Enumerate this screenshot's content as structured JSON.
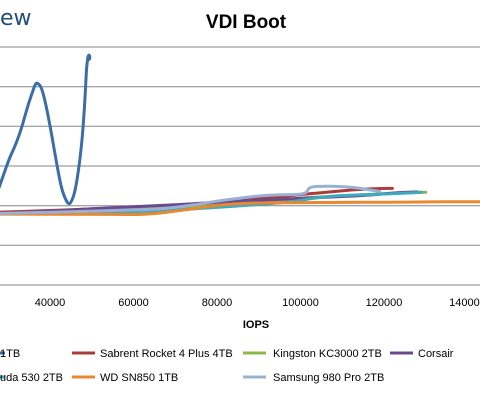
{
  "brand": "ew",
  "chart_data": {
    "type": "line",
    "title": "VDI Boot",
    "xlabel": "IOPS",
    "ylabel": "",
    "xticks": [
      40000,
      60000,
      80000,
      100000,
      120000,
      140000
    ],
    "xtick_labels": [
      "40000",
      "60000",
      "80000",
      "100000",
      "120000",
      "140000"
    ],
    "xlim": [
      25000,
      145000
    ],
    "grid": true,
    "legend_position": "bottom",
    "series": [
      {
        "name": "1TB",
        "color": "#3b6da8",
        "points": [
          [
            25000,
            0.31
          ],
          [
            26000,
            0.335
          ],
          [
            27000,
            0.37
          ],
          [
            28000,
            0.42
          ],
          [
            29000,
            0.47
          ],
          [
            30000,
            0.52
          ],
          [
            31000,
            0.56
          ],
          [
            32000,
            0.6
          ],
          [
            33000,
            0.65
          ],
          [
            34000,
            0.71
          ],
          [
            35000,
            0.77
          ],
          [
            36000,
            0.82
          ],
          [
            36500,
            0.845
          ],
          [
            37000,
            0.85
          ],
          [
            38000,
            0.83
          ],
          [
            39000,
            0.76
          ],
          [
            40000,
            0.67
          ],
          [
            41000,
            0.57
          ],
          [
            42000,
            0.47
          ],
          [
            43000,
            0.39
          ],
          [
            44000,
            0.35
          ],
          [
            44500,
            0.34
          ],
          [
            45000,
            0.345
          ],
          [
            46000,
            0.39
          ],
          [
            47000,
            0.5
          ],
          [
            47800,
            0.63
          ],
          [
            48300,
            0.76
          ],
          [
            48600,
            0.86
          ],
          [
            48800,
            0.92
          ],
          [
            49000,
            0.95
          ],
          [
            49300,
            0.97
          ],
          [
            49600,
            0.955
          ],
          [
            49300,
            0.945
          ],
          [
            49000,
            0.955
          ]
        ]
      },
      {
        "name": "Sabrent Rocket 4 Plus 4TB",
        "color": "#aa3c3c",
        "points": [
          [
            25000,
            0.305
          ],
          [
            30000,
            0.307
          ],
          [
            40000,
            0.313
          ],
          [
            50000,
            0.32
          ],
          [
            60000,
            0.325
          ],
          [
            70000,
            0.334
          ],
          [
            80000,
            0.348
          ],
          [
            85000,
            0.355
          ],
          [
            90000,
            0.363
          ],
          [
            95000,
            0.37
          ],
          [
            100000,
            0.38
          ],
          [
            105000,
            0.388
          ],
          [
            110000,
            0.396
          ],
          [
            115000,
            0.403
          ],
          [
            120000,
            0.406
          ],
          [
            122000,
            0.406
          ]
        ]
      },
      {
        "name": "Kingston KC3000 2TB",
        "color": "#8db849",
        "points": [
          [
            25000,
            0.3
          ],
          [
            40000,
            0.304
          ],
          [
            60000,
            0.318
          ],
          [
            70000,
            0.327
          ],
          [
            80000,
            0.335
          ],
          [
            90000,
            0.35
          ],
          [
            100000,
            0.365
          ],
          [
            110000,
            0.375
          ],
          [
            120000,
            0.384
          ],
          [
            126000,
            0.388
          ],
          [
            130000,
            0.39
          ]
        ]
      },
      {
        "name": "Corsair",
        "color": "#6a4a8f",
        "points": [
          [
            25000,
            0.3
          ],
          [
            35000,
            0.305
          ],
          [
            45000,
            0.315
          ],
          [
            55000,
            0.325
          ],
          [
            65000,
            0.333
          ],
          [
            75000,
            0.342
          ],
          [
            85000,
            0.352
          ],
          [
            95000,
            0.36
          ],
          [
            105000,
            0.368
          ],
          [
            115000,
            0.376
          ],
          [
            120000,
            0.383
          ],
          [
            125000,
            0.39
          ],
          [
            128000,
            0.391
          ]
        ]
      },
      {
        "name": "uda 530 2TB",
        "color": "#3fa9bf",
        "points": [
          [
            25000,
            0.3
          ],
          [
            40000,
            0.302
          ],
          [
            55000,
            0.306
          ],
          [
            65000,
            0.31
          ],
          [
            75000,
            0.32
          ],
          [
            85000,
            0.332
          ],
          [
            95000,
            0.345
          ],
          [
            100000,
            0.355
          ],
          [
            105000,
            0.37
          ],
          [
            110000,
            0.376
          ],
          [
            120000,
            0.382
          ],
          [
            125000,
            0.386
          ],
          [
            129000,
            0.39
          ]
        ]
      },
      {
        "name": "WD SN850 1TB",
        "color": "#e8882f",
        "points": [
          [
            25000,
            0.298
          ],
          [
            35000,
            0.298
          ],
          [
            50000,
            0.297
          ],
          [
            60000,
            0.296
          ],
          [
            65000,
            0.299
          ],
          [
            70000,
            0.31
          ],
          [
            75000,
            0.322
          ],
          [
            80000,
            0.335
          ],
          [
            85000,
            0.342
          ],
          [
            90000,
            0.345
          ],
          [
            100000,
            0.346
          ],
          [
            110000,
            0.347
          ],
          [
            120000,
            0.348
          ],
          [
            130000,
            0.349
          ],
          [
            140000,
            0.35
          ],
          [
            145000,
            0.35
          ]
        ]
      },
      {
        "name": "Samsung 980 Pro 2TB",
        "color": "#9bb0d5",
        "points": [
          [
            25000,
            0.3
          ],
          [
            40000,
            0.305
          ],
          [
            50000,
            0.31
          ],
          [
            60000,
            0.316
          ],
          [
            65000,
            0.318
          ],
          [
            70000,
            0.326
          ],
          [
            75000,
            0.338
          ],
          [
            80000,
            0.353
          ],
          [
            85000,
            0.364
          ],
          [
            90000,
            0.375
          ],
          [
            95000,
            0.38
          ],
          [
            100000,
            0.38
          ],
          [
            101500,
            0.388
          ],
          [
            102000,
            0.41
          ],
          [
            104000,
            0.415
          ],
          [
            110000,
            0.414
          ],
          [
            114000,
            0.408
          ],
          [
            116000,
            0.401
          ],
          [
            118000,
            0.396
          ],
          [
            119000,
            0.393
          ]
        ]
      }
    ]
  }
}
